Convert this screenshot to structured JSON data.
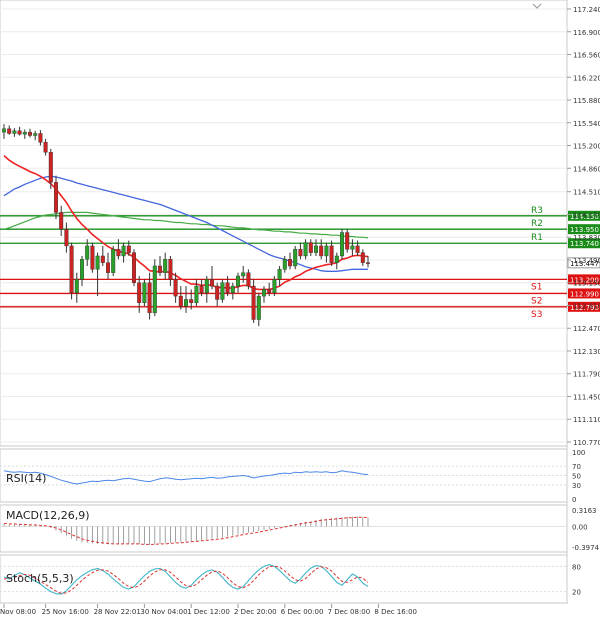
{
  "chart_data": {
    "type": "candlestick",
    "instrument_note": "USD/JPY style price chart with support/resistance levels and indicator sub-panels",
    "main": {
      "ylim": [
        110.77,
        117.24
      ],
      "y_ticks": [
        "117.240",
        "116.900",
        "116.560",
        "116.220",
        "115.880",
        "115.540",
        "115.200",
        "114.860",
        "114.510",
        "114.170",
        "113.830",
        "113.490",
        "113.150",
        "112.810",
        "112.470",
        "112.130",
        "111.790",
        "111.450",
        "111.110",
        "110.770"
      ],
      "current_price": "113.447",
      "candles": [
        [
          115.4,
          115.52,
          115.3,
          115.45
        ],
        [
          115.45,
          115.5,
          115.36,
          115.38
        ],
        [
          115.38,
          115.46,
          115.33,
          115.42
        ],
        [
          115.42,
          115.48,
          115.35,
          115.37
        ],
        [
          115.37,
          115.44,
          115.3,
          115.4
        ],
        [
          115.4,
          115.45,
          115.32,
          115.35
        ],
        [
          115.35,
          115.42,
          115.28,
          115.38
        ],
        [
          115.38,
          115.43,
          115.2,
          115.25
        ],
        [
          115.25,
          115.3,
          115.05,
          115.1
        ],
        [
          115.1,
          115.15,
          114.55,
          114.65
        ],
        [
          114.65,
          114.75,
          114.1,
          114.2
        ],
        [
          114.2,
          114.3,
          113.85,
          113.95
        ],
        [
          113.95,
          114.05,
          113.6,
          113.7
        ],
        [
          113.7,
          113.75,
          112.9,
          113.0
        ],
        [
          113.0,
          113.3,
          112.85,
          113.2
        ],
        [
          113.2,
          113.55,
          113.1,
          113.5
        ],
        [
          113.5,
          113.8,
          113.4,
          113.7
        ],
        [
          113.7,
          113.75,
          113.3,
          113.35
        ],
        [
          113.35,
          113.6,
          112.95,
          113.55
        ],
        [
          113.55,
          113.7,
          113.4,
          113.45
        ],
        [
          113.45,
          113.6,
          113.2,
          113.3
        ],
        [
          113.3,
          113.7,
          113.25,
          113.65
        ],
        [
          113.65,
          113.8,
          113.5,
          113.55
        ],
        [
          113.55,
          113.75,
          113.45,
          113.7
        ],
        [
          113.7,
          113.78,
          113.55,
          113.6
        ],
        [
          113.6,
          113.65,
          113.1,
          113.15
        ],
        [
          113.15,
          113.25,
          112.7,
          112.85
        ],
        [
          112.85,
          113.2,
          112.8,
          113.15
        ],
        [
          113.15,
          113.3,
          112.6,
          112.7
        ],
        [
          112.7,
          113.5,
          112.65,
          113.4
        ],
        [
          113.4,
          113.55,
          113.25,
          113.3
        ],
        [
          113.3,
          113.6,
          113.2,
          113.5
        ],
        [
          113.5,
          113.55,
          113.1,
          113.2
        ],
        [
          113.2,
          113.3,
          112.85,
          112.95
        ],
        [
          112.95,
          113.1,
          112.75,
          112.8
        ],
        [
          112.8,
          113.1,
          112.7,
          112.9
        ],
        [
          112.9,
          113.05,
          112.75,
          112.85
        ],
        [
          112.85,
          113.2,
          112.8,
          113.1
        ],
        [
          113.1,
          113.2,
          112.95,
          113.0
        ],
        [
          113.0,
          113.25,
          112.85,
          113.2
        ],
        [
          113.2,
          113.4,
          113.05,
          113.1
        ],
        [
          113.1,
          113.15,
          112.8,
          112.9
        ],
        [
          112.9,
          113.2,
          112.85,
          113.15
        ],
        [
          113.15,
          113.25,
          112.95,
          113.0
        ],
        [
          113.0,
          113.15,
          112.9,
          113.1
        ],
        [
          113.1,
          113.3,
          113.0,
          113.25
        ],
        [
          113.25,
          113.4,
          113.15,
          113.3
        ],
        [
          113.3,
          113.35,
          113.05,
          113.1
        ],
        [
          113.1,
          113.2,
          112.55,
          112.6
        ],
        [
          112.6,
          113.0,
          112.5,
          112.95
        ],
        [
          112.95,
          113.1,
          112.85,
          113.05
        ],
        [
          113.05,
          113.15,
          112.95,
          113.0
        ],
        [
          113.0,
          113.25,
          112.95,
          113.2
        ],
        [
          113.2,
          113.4,
          113.1,
          113.35
        ],
        [
          113.35,
          113.55,
          113.3,
          113.5
        ],
        [
          113.5,
          113.6,
          113.35,
          113.4
        ],
        [
          113.4,
          113.7,
          113.35,
          113.65
        ],
        [
          113.65,
          113.75,
          113.5,
          113.55
        ],
        [
          113.55,
          113.8,
          113.5,
          113.75
        ],
        [
          113.75,
          113.8,
          113.55,
          113.6
        ],
        [
          113.6,
          113.8,
          113.55,
          113.7
        ],
        [
          113.7,
          113.8,
          113.5,
          113.55
        ],
        [
          113.55,
          113.75,
          113.45,
          113.7
        ],
        [
          113.7,
          113.78,
          113.4,
          113.45
        ],
        [
          113.45,
          113.6,
          113.35,
          113.55
        ],
        [
          113.55,
          113.95,
          113.5,
          113.9
        ],
        [
          113.9,
          113.95,
          113.6,
          113.65
        ],
        [
          113.65,
          113.8,
          113.55,
          113.7
        ],
        [
          113.7,
          113.78,
          113.55,
          113.6
        ],
        [
          113.6,
          113.65,
          113.4,
          113.45
        ],
        [
          113.45,
          113.55,
          113.38,
          113.447
        ]
      ],
      "ema_red": [
        115.05,
        114.98,
        114.93,
        114.89,
        114.85,
        114.81,
        114.78,
        114.74,
        114.69,
        114.63,
        114.55,
        114.45,
        114.35,
        114.22,
        114.11,
        114.02,
        113.95,
        113.87,
        113.81,
        113.75,
        113.69,
        113.65,
        113.62,
        113.6,
        113.58,
        113.53,
        113.46,
        113.4,
        113.33,
        113.32,
        113.31,
        113.32,
        113.3,
        113.26,
        113.21,
        113.17,
        113.13,
        113.13,
        113.11,
        113.12,
        113.11,
        113.08,
        113.08,
        113.07,
        113.07,
        113.09,
        113.11,
        113.11,
        113.06,
        113.05,
        113.05,
        113.05,
        113.07,
        113.1,
        113.16,
        113.19,
        113.24,
        113.27,
        113.32,
        113.35,
        113.38,
        113.4,
        113.42,
        113.43,
        113.45,
        113.5,
        113.52,
        113.55,
        113.56,
        113.55,
        113.54
      ],
      "ma_blue": [
        114.45,
        114.5,
        114.55,
        114.58,
        114.62,
        114.65,
        114.68,
        114.71,
        114.73,
        114.74,
        114.73,
        114.71,
        114.69,
        114.67,
        114.64,
        114.62,
        114.6,
        114.58,
        114.56,
        114.54,
        114.52,
        114.5,
        114.48,
        114.46,
        114.44,
        114.42,
        114.4,
        114.38,
        114.36,
        114.34,
        114.32,
        114.29,
        114.26,
        114.23,
        114.2,
        114.17,
        114.14,
        114.11,
        114.08,
        114.05,
        114.01,
        113.97,
        113.93,
        113.89,
        113.85,
        113.81,
        113.77,
        113.73,
        113.69,
        113.65,
        113.61,
        113.57,
        113.54,
        113.52,
        113.5,
        113.47,
        113.45,
        113.42,
        113.39,
        113.37,
        113.35,
        113.33,
        113.32,
        113.32,
        113.32,
        113.33,
        113.34,
        113.35,
        113.35,
        113.35,
        113.35
      ],
      "ma_green": [
        113.95,
        113.97,
        114.0,
        114.03,
        114.06,
        114.09,
        114.12,
        114.14,
        114.16,
        114.17,
        114.18,
        114.19,
        114.2,
        114.2,
        114.2,
        114.2,
        114.2,
        114.19,
        114.18,
        114.17,
        114.16,
        114.15,
        114.14,
        114.13,
        114.12,
        114.11,
        114.1,
        114.09,
        114.09,
        114.08,
        114.08,
        114.07,
        114.06,
        114.05,
        114.05,
        114.04,
        114.03,
        114.03,
        114.02,
        114.02,
        114.01,
        114.0,
        114.0,
        113.99,
        113.98,
        113.97,
        113.97,
        113.96,
        113.95,
        113.94,
        113.94,
        113.93,
        113.92,
        113.92,
        113.91,
        113.91,
        113.9,
        113.89,
        113.89,
        113.88,
        113.88,
        113.87,
        113.87,
        113.86,
        113.86,
        113.85,
        113.84,
        113.84,
        113.83,
        113.83,
        113.82
      ],
      "levels": [
        {
          "name": "R3",
          "value": 114.15,
          "label": "114.150",
          "color": "#1a8c1a"
        },
        {
          "name": "R2",
          "value": 113.95,
          "label": "113.950",
          "color": "#1a8c1a"
        },
        {
          "name": "R1",
          "value": 113.74,
          "label": "113.740",
          "color": "#1a8c1a"
        },
        {
          "name": "S1",
          "value": 113.2,
          "label": "113.200",
          "color": "#dd1111"
        },
        {
          "name": "S2",
          "value": 112.99,
          "label": "112.990",
          "color": "#dd1111"
        },
        {
          "name": "S3",
          "value": 112.79,
          "label": "112.790",
          "color": "#dd1111"
        }
      ]
    },
    "rsi": {
      "label": "RSI(14)",
      "ylim": [
        0,
        100
      ],
      "ticks": [
        "100",
        "70",
        "50",
        "30",
        "0"
      ],
      "values": [
        60,
        58,
        57,
        58,
        57,
        56,
        57,
        55,
        52,
        48,
        44,
        40,
        37,
        34,
        32,
        34,
        36,
        38,
        37,
        39,
        40,
        39,
        41,
        43,
        44,
        42,
        40,
        38,
        37,
        40,
        43,
        45,
        44,
        42,
        41,
        42,
        43,
        44,
        43,
        45,
        46,
        44,
        45,
        47,
        48,
        49,
        50,
        48,
        45,
        47,
        49,
        50,
        52,
        54,
        55,
        54,
        57,
        56,
        58,
        57,
        58,
        57,
        58,
        56,
        57,
        60,
        58,
        57,
        55,
        53,
        52
      ]
    },
    "macd": {
      "label": "MACD(12,26,9)",
      "ticks": [
        "0.3163",
        "0.00",
        "-0.3974"
      ],
      "ylim": [
        -0.44,
        0.36
      ],
      "hist": [
        0.05,
        0.04,
        0.04,
        0.03,
        0.03,
        0.02,
        0.02,
        0.01,
        0.0,
        -0.03,
        -0.08,
        -0.13,
        -0.18,
        -0.24,
        -0.28,
        -0.31,
        -0.32,
        -0.33,
        -0.34,
        -0.34,
        -0.35,
        -0.35,
        -0.35,
        -0.34,
        -0.34,
        -0.34,
        -0.35,
        -0.35,
        -0.36,
        -0.35,
        -0.34,
        -0.33,
        -0.32,
        -0.31,
        -0.31,
        -0.3,
        -0.29,
        -0.28,
        -0.26,
        -0.25,
        -0.24,
        -0.23,
        -0.22,
        -0.2,
        -0.18,
        -0.16,
        -0.14,
        -0.12,
        -0.11,
        -0.09,
        -0.07,
        -0.05,
        -0.03,
        -0.01,
        0.01,
        0.03,
        0.05,
        0.07,
        0.09,
        0.1,
        0.12,
        0.14,
        0.15,
        0.16,
        0.17,
        0.18,
        0.19,
        0.19,
        0.19,
        0.18,
        0.17
      ],
      "signal": [
        0.06,
        0.05,
        0.05,
        0.04,
        0.04,
        0.03,
        0.03,
        0.02,
        0.01,
        0.0,
        -0.03,
        -0.07,
        -0.11,
        -0.16,
        -0.2,
        -0.24,
        -0.27,
        -0.29,
        -0.31,
        -0.32,
        -0.33,
        -0.34,
        -0.34,
        -0.34,
        -0.34,
        -0.34,
        -0.34,
        -0.35,
        -0.35,
        -0.35,
        -0.34,
        -0.34,
        -0.33,
        -0.32,
        -0.32,
        -0.31,
        -0.3,
        -0.29,
        -0.28,
        -0.27,
        -0.26,
        -0.25,
        -0.24,
        -0.22,
        -0.2,
        -0.18,
        -0.16,
        -0.14,
        -0.13,
        -0.11,
        -0.09,
        -0.07,
        -0.05,
        -0.03,
        -0.01,
        0.01,
        0.03,
        0.05,
        0.07,
        0.08,
        0.1,
        0.12,
        0.13,
        0.14,
        0.15,
        0.16,
        0.17,
        0.17,
        0.18,
        0.18,
        0.17
      ]
    },
    "stoch": {
      "label": "Stoch(5,5,3)",
      "ticks": [
        "80",
        "20"
      ],
      "ylim": [
        0,
        100
      ],
      "k": [
        55,
        50,
        58,
        65,
        60,
        52,
        45,
        38,
        28,
        20,
        15,
        14,
        22,
        35,
        48,
        58,
        66,
        72,
        75,
        70,
        62,
        50,
        40,
        30,
        26,
        32,
        45,
        58,
        68,
        74,
        75,
        68,
        55,
        42,
        32,
        28,
        35,
        48,
        60,
        68,
        72,
        66,
        54,
        40,
        30,
        26,
        32,
        46,
        60,
        72,
        80,
        84,
        80,
        70,
        58,
        46,
        40,
        50,
        64,
        76,
        82,
        80,
        70,
        56,
        42,
        35,
        48,
        62,
        55,
        40,
        32
      ],
      "d": [
        50,
        52,
        54,
        58,
        61,
        59,
        52,
        45,
        37,
        29,
        21,
        16,
        17,
        24,
        35,
        47,
        57,
        65,
        71,
        72,
        69,
        61,
        51,
        40,
        32,
        29,
        34,
        45,
        57,
        67,
        72,
        72,
        66,
        55,
        43,
        34,
        32,
        37,
        48,
        59,
        67,
        69,
        64,
        53,
        41,
        32,
        29,
        35,
        46,
        60,
        71,
        79,
        81,
        78,
        69,
        58,
        48,
        45,
        51,
        63,
        74,
        79,
        77,
        69,
        56,
        44,
        42,
        48,
        55,
        52,
        42
      ]
    },
    "x_labels": [
      {
        "idx": 0,
        "text": "Nov 08:00"
      },
      {
        "idx": 8,
        "text": "25 Nov 16:00"
      },
      {
        "idx": 18,
        "text": "28 Nov 22:01"
      },
      {
        "idx": 27,
        "text": "30 Nov 04:00"
      },
      {
        "idx": 36,
        "text": "1 Dec 12:00"
      },
      {
        "idx": 45,
        "text": "2 Dec 20:00"
      },
      {
        "idx": 54,
        "text": "6 Dec 00:00"
      },
      {
        "idx": 63,
        "text": "7 Dec 08:00"
      },
      {
        "idx": 72,
        "text": "8 Dec 16:00"
      }
    ],
    "colors": {
      "bull": "#2aa02a",
      "bear": "#cc2222",
      "ema": "#ee2222",
      "ma_blue": "#4466dd",
      "ma_green": "#44aa44",
      "rsi_line": "#4a86e8",
      "macd_signal": "#dd3333",
      "stoch_k": "#3fb6c8",
      "stoch_d": "#dd3333",
      "current_badge": "#ffffff"
    }
  }
}
